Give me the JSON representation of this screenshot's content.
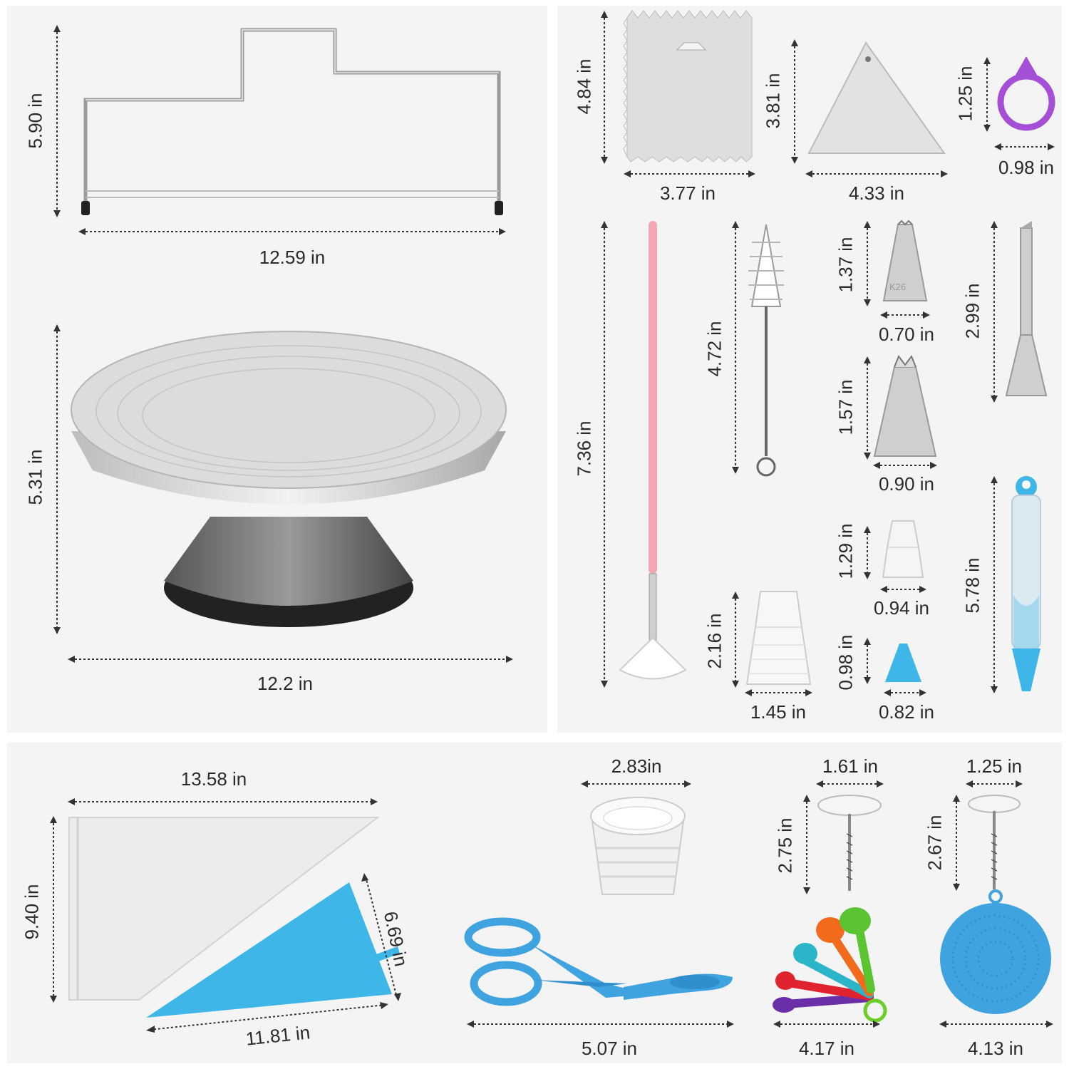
{
  "top_left": {
    "cake_leveler": {
      "height": "5.90 in",
      "width": "12.59 in"
    },
    "turntable": {
      "height": "5.31 in",
      "width": "12.2 in"
    }
  },
  "top_right": {
    "scraper_rect": {
      "height": "4.84 in",
      "width": "3.77 in"
    },
    "scraper_triangle": {
      "height": "3.81 in",
      "width": "4.33 in"
    },
    "ring": {
      "height": "1.25 in",
      "width": "0.98 in"
    },
    "fan_brush": {
      "height": "7.36 in"
    },
    "cleaning_brush": {
      "height": "4.72 in"
    },
    "tip_k26": {
      "height": "1.37 in",
      "width": "0.70 in",
      "engraving": "K26"
    },
    "tip_russian": {
      "height": "1.57 in",
      "width": "0.90 in"
    },
    "tip_filling": {
      "height": "2.99 in"
    },
    "small_coupler": {
      "height": "1.29 in",
      "width": "0.94 in"
    },
    "large_coupler": {
      "height": "2.16 in",
      "width": "1.45 in"
    },
    "blue_cone": {
      "height": "0.98 in",
      "width": "0.82 in"
    },
    "decorating_pen": {
      "height": "5.78 in"
    }
  },
  "bottom": {
    "disposable_bag": {
      "width": "13.58 in",
      "height": "9.40 in"
    },
    "silicone_bag": {
      "side": "6.69 in",
      "width": "11.81 in"
    },
    "cupcake_liners": {
      "width": "2.83in"
    },
    "scissors": {
      "width": "5.07 in"
    },
    "flower_nail_large": {
      "width": "1.61 in",
      "height": "2.75 in"
    },
    "measuring_spoons": {
      "width": "4.17 in"
    },
    "flower_nail_small": {
      "width": "1.25 in",
      "height": "2.67 in"
    },
    "silicone_scrubber": {
      "width": "4.13 in"
    }
  },
  "colors": {
    "panel": "#f4f4f4",
    "silicone_blue": "#3fb6e8",
    "handle_pink": "#f2a7b3",
    "ring_purple": "#a44fd6"
  }
}
